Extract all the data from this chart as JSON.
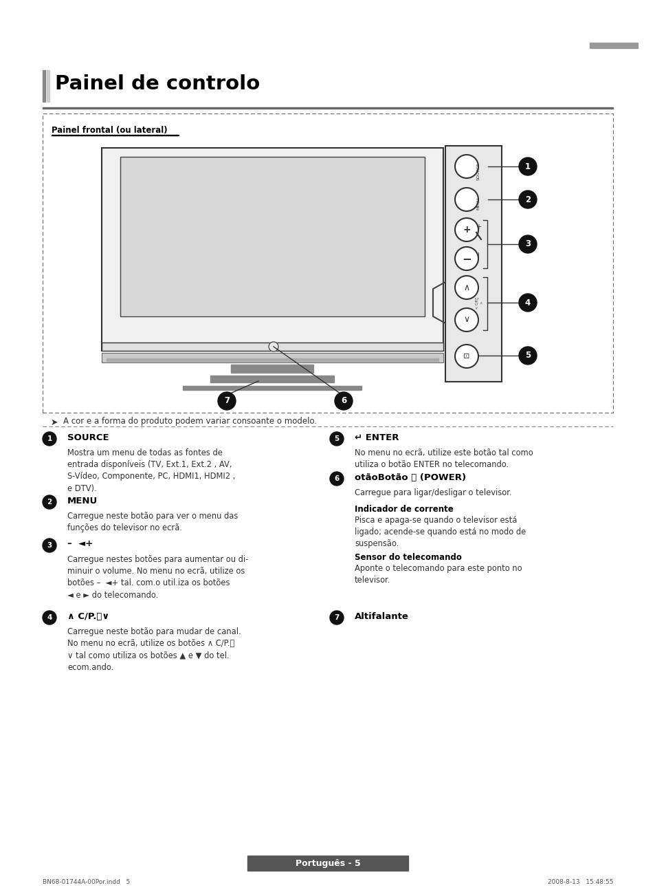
{
  "title": "Painel de controlo",
  "subtitle": "Painel frontal (ou lateral)",
  "bg_color": "#ffffff",
  "note": "≥  A cor e a forma do produto podem variar consoante o modelo.",
  "footer_text": "Português - 5",
  "footer_bottom_left": "BN68-01744A-00Por.indd   5",
  "footer_bottom_right": "2008-8-13   15:48:55",
  "body_items_left": [
    {
      "num": "1",
      "title": "SOURCE",
      "body": "Mostra um menu de todas as fontes de\nentrada disponíveis (TV, Ext.1, Ext.2 , AV,\nS-Vídeo, Componente, PC, HDMI1, HDMI2 ,\ne DTV)."
    },
    {
      "num": "2",
      "title": "MENU",
      "body": "Carregue neste botão para ver o menu das\nfunções do televisor no ecrã."
    },
    {
      "num": "3",
      "title": "–  ■+",
      "body": "Carregue nestes botões para aumentar ou di-\nminuir o volume. No menu no ecrã, utilize os\nbotões –  ■+ tal. com.o util.iza os botões\n◄ e ► do telecomando."
    },
    {
      "num": "4",
      "title": "∧ C/P.⏻∨",
      "body": "Carregue neste botão para mudar de canal.\nNo menu no ecrã, utilize os botões ∧ C/P.⏻\n∨ tal como utiliza os botões ▲ e ▼ do tel.\necom.ando."
    }
  ],
  "body_items_right": [
    {
      "num": "5",
      "title": "↵ ENTER",
      "body": "No menu no ecrã, utilize este botão tal como\nutiliza o botão ENTER no telecomando."
    },
    {
      "num": "6",
      "title": "otãoBotão ⏻ (POWER)",
      "body1": "Carregue para ligar/desligar o televisor.",
      "sub1_title": "Indicador de corrente",
      "sub1_body": "Pisca e apaga-se quando o televisor está\nligado; acende-se quando está no modo de\nsuspensão.",
      "sub2_title": "Sensor do telecomando",
      "sub2_body": "Aponte o telecomando para este ponto no\ntelevisor."
    },
    {
      "num": "7",
      "title": "Altifalante",
      "body": ""
    }
  ]
}
